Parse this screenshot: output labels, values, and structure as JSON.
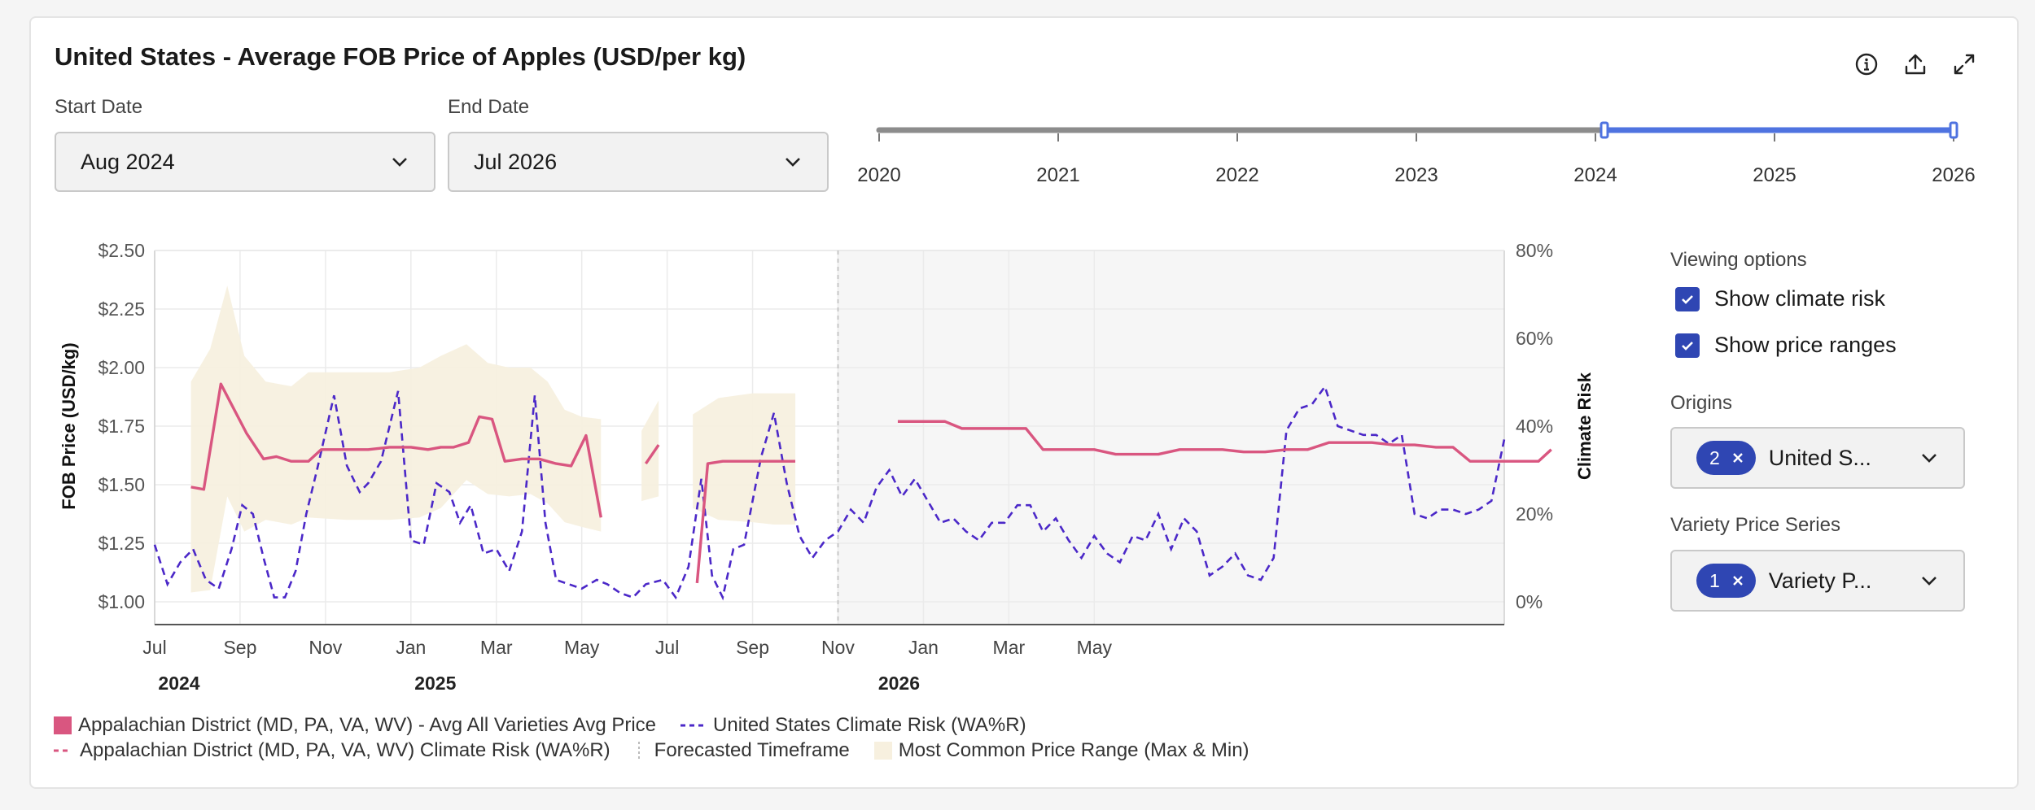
{
  "title": "United States - Average FOB Price of Apples (USD/per kg)",
  "toolbar": {
    "info_icon": "info-icon",
    "export_icon": "export-icon",
    "expand_icon": "expand-icon"
  },
  "filters": {
    "start_label": "Start Date",
    "start_value": "Aug 2024",
    "end_label": "End Date",
    "end_value": "Jul 2026"
  },
  "timeline": {
    "years": [
      "2020",
      "2021",
      "2022",
      "2023",
      "2024",
      "2025",
      "2026"
    ],
    "selected_start": 2024.05,
    "selected_end": 2026.0,
    "track_color": "#8c8c8c",
    "selected_color": "#4f73e0"
  },
  "sidebar": {
    "viewing_heading": "Viewing options",
    "options": [
      {
        "label": "Show climate risk",
        "checked": true
      },
      {
        "label": "Show price ranges",
        "checked": true
      }
    ],
    "origins_heading": "Origins",
    "origins_count": "2",
    "origins_text": "United S...",
    "variety_heading": "Variety Price Series",
    "variety_count": "1",
    "variety_text": "Variety P..."
  },
  "legend": {
    "items": [
      "Appalachian District (MD, PA, VA, WV) - Avg All Varieties Avg Price",
      "United States Climate Risk (WA%R)",
      "Appalachian District (MD, PA, VA, WV) Climate Risk (WA%R)",
      "Forecasted Timeframe",
      "Most Common Price Range (Max & Min)"
    ]
  },
  "chart_data": {
    "type": "line",
    "ylabel": "FOB Price (USD/kg)",
    "y2label": "Climate Risk",
    "ylim": [
      1.0,
      2.5
    ],
    "y2lim": [
      0,
      80
    ],
    "y_ticks": [
      "$2.50",
      "$2.25",
      "$2.00",
      "$1.75",
      "$1.50",
      "$1.25",
      "$1.00"
    ],
    "y2_ticks": [
      "80%",
      "60%",
      "40%",
      "20%",
      "0%"
    ],
    "x_ticks": [
      "Jul",
      "Sep",
      "Nov",
      "Jan",
      "Mar",
      "May",
      "Jul",
      "Sep",
      "Nov",
      "Jan",
      "Mar",
      "May"
    ],
    "x_years": [
      "2024",
      "2025",
      "2026"
    ],
    "grid": true,
    "forecast_start": "2025-07",
    "colors": {
      "price": "#d95680",
      "risk": "#4b28c8",
      "range": "#f7f0df",
      "forecast_bg": "#f6f6f6"
    },
    "price_segments": [
      [
        [
          0.85,
          1.49
        ],
        [
          1.15,
          1.48
        ],
        [
          1.55,
          1.93
        ],
        [
          2.15,
          1.72
        ],
        [
          2.55,
          1.61
        ],
        [
          2.85,
          1.62
        ],
        [
          3.2,
          1.6
        ],
        [
          3.6,
          1.6
        ],
        [
          3.9,
          1.65
        ],
        [
          4.5,
          1.65
        ],
        [
          5.0,
          1.65
        ],
        [
          5.5,
          1.66
        ],
        [
          6.0,
          1.66
        ],
        [
          6.4,
          1.65
        ],
        [
          6.7,
          1.66
        ],
        [
          7.0,
          1.66
        ],
        [
          7.35,
          1.68
        ],
        [
          7.6,
          1.79
        ],
        [
          7.9,
          1.78
        ],
        [
          8.2,
          1.6
        ],
        [
          8.6,
          1.61
        ],
        [
          9.0,
          1.61
        ],
        [
          9.4,
          1.59
        ],
        [
          9.75,
          1.58
        ],
        [
          10.1,
          1.71
        ],
        [
          10.45,
          1.36
        ]
      ],
      [
        [
          11.5,
          1.59
        ],
        [
          11.8,
          1.67
        ]
      ],
      [
        [
          12.7,
          1.08
        ],
        [
          12.95,
          1.59
        ],
        [
          13.3,
          1.6
        ],
        [
          14.0,
          1.6
        ],
        [
          14.5,
          1.6
        ],
        [
          15.0,
          1.6
        ]
      ],
      [
        [
          17.4,
          1.77
        ],
        [
          17.8,
          1.77
        ],
        [
          18.2,
          1.77
        ],
        [
          18.5,
          1.77
        ],
        [
          18.9,
          1.74
        ],
        [
          19.5,
          1.74
        ],
        [
          20.0,
          1.74
        ],
        [
          20.4,
          1.74
        ],
        [
          20.8,
          1.65
        ],
        [
          21.5,
          1.65
        ],
        [
          22.0,
          1.65
        ],
        [
          22.5,
          1.63
        ],
        [
          23.0,
          1.63
        ],
        [
          23.5,
          1.63
        ],
        [
          24.0,
          1.65
        ],
        [
          25.0,
          1.65
        ],
        [
          25.5,
          1.64
        ],
        [
          26.0,
          1.64
        ],
        [
          26.5,
          1.65
        ],
        [
          27.0,
          1.65
        ],
        [
          27.5,
          1.68
        ],
        [
          28.0,
          1.68
        ],
        [
          28.5,
          1.68
        ],
        [
          29.0,
          1.67
        ],
        [
          29.5,
          1.67
        ],
        [
          30.0,
          1.66
        ],
        [
          30.4,
          1.66
        ],
        [
          30.8,
          1.6
        ],
        [
          31.5,
          1.6
        ],
        [
          32.0,
          1.6
        ],
        [
          32.4,
          1.6
        ],
        [
          32.7,
          1.65
        ]
      ]
    ],
    "range_band": [
      [
        [
          0.85,
          1.04,
          1.94
        ],
        [
          1.3,
          1.05,
          2.08
        ],
        [
          1.7,
          1.45,
          2.35
        ],
        [
          2.1,
          1.3,
          2.05
        ],
        [
          2.6,
          1.35,
          1.94
        ],
        [
          3.2,
          1.33,
          1.92
        ],
        [
          3.6,
          1.36,
          1.98
        ],
        [
          4.5,
          1.35,
          1.98
        ],
        [
          5.5,
          1.35,
          1.98
        ],
        [
          6.2,
          1.36,
          2.0
        ],
        [
          6.7,
          1.4,
          2.05
        ],
        [
          7.3,
          1.52,
          2.1
        ],
        [
          7.8,
          1.46,
          2.02
        ],
        [
          8.3,
          1.45,
          2.0
        ],
        [
          8.8,
          1.46,
          2.0
        ],
        [
          9.2,
          1.42,
          1.94
        ],
        [
          9.6,
          1.34,
          1.82
        ],
        [
          10.0,
          1.32,
          1.79
        ],
        [
          10.45,
          1.3,
          1.78
        ]
      ],
      [
        [
          11.4,
          1.43,
          1.73
        ],
        [
          11.8,
          1.45,
          1.86
        ]
      ],
      [
        [
          12.6,
          1.4,
          1.8
        ],
        [
          13.2,
          1.35,
          1.87
        ],
        [
          14.0,
          1.34,
          1.89
        ],
        [
          14.5,
          1.33,
          1.89
        ],
        [
          15.0,
          1.33,
          1.89
        ]
      ]
    ],
    "risk_series": [
      [
        0,
        13
      ],
      [
        0.3,
        4
      ],
      [
        0.6,
        9
      ],
      [
        0.9,
        12
      ],
      [
        1.2,
        5
      ],
      [
        1.5,
        3
      ],
      [
        1.8,
        12
      ],
      [
        2.05,
        22
      ],
      [
        2.3,
        20
      ],
      [
        2.55,
        10
      ],
      [
        2.8,
        1
      ],
      [
        3.05,
        1
      ],
      [
        3.3,
        7
      ],
      [
        3.55,
        20
      ],
      [
        3.8,
        30
      ],
      [
        4.2,
        47
      ],
      [
        4.5,
        31
      ],
      [
        4.8,
        25
      ],
      [
        5.0,
        27
      ],
      [
        5.3,
        32
      ],
      [
        5.7,
        48
      ],
      [
        6.0,
        14
      ],
      [
        6.3,
        13
      ],
      [
        6.6,
        27
      ],
      [
        6.9,
        25
      ],
      [
        7.15,
        18
      ],
      [
        7.4,
        22
      ],
      [
        7.7,
        11
      ],
      [
        8.0,
        12
      ],
      [
        8.3,
        7
      ],
      [
        8.6,
        16
      ],
      [
        8.9,
        47
      ],
      [
        9.15,
        18
      ],
      [
        9.4,
        5
      ],
      [
        9.7,
        4
      ],
      [
        10.0,
        3
      ],
      [
        10.35,
        5
      ],
      [
        10.6,
        4
      ],
      [
        10.9,
        2
      ],
      [
        11.2,
        1
      ],
      [
        11.5,
        4
      ],
      [
        11.9,
        5
      ],
      [
        12.2,
        1
      ],
      [
        12.5,
        8
      ],
      [
        12.8,
        28
      ],
      [
        13.05,
        6
      ],
      [
        13.3,
        1
      ],
      [
        13.55,
        12
      ],
      [
        13.8,
        13
      ],
      [
        14.2,
        33
      ],
      [
        14.5,
        43
      ],
      [
        14.8,
        27
      ],
      [
        15.1,
        15
      ],
      [
        15.4,
        10
      ],
      [
        15.7,
        14
      ],
      [
        16.0,
        16
      ],
      [
        16.3,
        21
      ],
      [
        16.6,
        18
      ],
      [
        16.9,
        26
      ],
      [
        17.2,
        30
      ],
      [
        17.5,
        24
      ],
      [
        17.8,
        28
      ],
      [
        18.1,
        23
      ],
      [
        18.4,
        18
      ],
      [
        18.7,
        19
      ],
      [
        19.0,
        16
      ],
      [
        19.3,
        14
      ],
      [
        19.6,
        18
      ],
      [
        19.9,
        18
      ],
      [
        20.2,
        22
      ],
      [
        20.5,
        22
      ],
      [
        20.8,
        16
      ],
      [
        21.1,
        19
      ],
      [
        21.4,
        14
      ],
      [
        21.7,
        10
      ],
      [
        22.0,
        15
      ],
      [
        22.3,
        11
      ],
      [
        22.6,
        9
      ],
      [
        22.9,
        15
      ],
      [
        23.2,
        14
      ],
      [
        23.5,
        20
      ],
      [
        23.8,
        12
      ],
      [
        24.1,
        19
      ],
      [
        24.4,
        16
      ],
      [
        24.7,
        6
      ],
      [
        25.0,
        8
      ],
      [
        25.3,
        11
      ],
      [
        25.6,
        6
      ],
      [
        25.9,
        5
      ],
      [
        26.2,
        10
      ],
      [
        26.5,
        39
      ],
      [
        26.8,
        44
      ],
      [
        27.1,
        45
      ],
      [
        27.4,
        49
      ],
      [
        27.7,
        40
      ],
      [
        28.0,
        39
      ],
      [
        28.3,
        38
      ],
      [
        28.6,
        38
      ],
      [
        28.9,
        36
      ],
      [
        29.2,
        38
      ],
      [
        29.5,
        20
      ],
      [
        29.8,
        19
      ],
      [
        30.1,
        21
      ],
      [
        30.4,
        21
      ],
      [
        30.7,
        20
      ],
      [
        31.0,
        21
      ],
      [
        31.3,
        23
      ],
      [
        31.6,
        37
      ]
    ],
    "x_range": [
      0,
      31.6
    ]
  }
}
